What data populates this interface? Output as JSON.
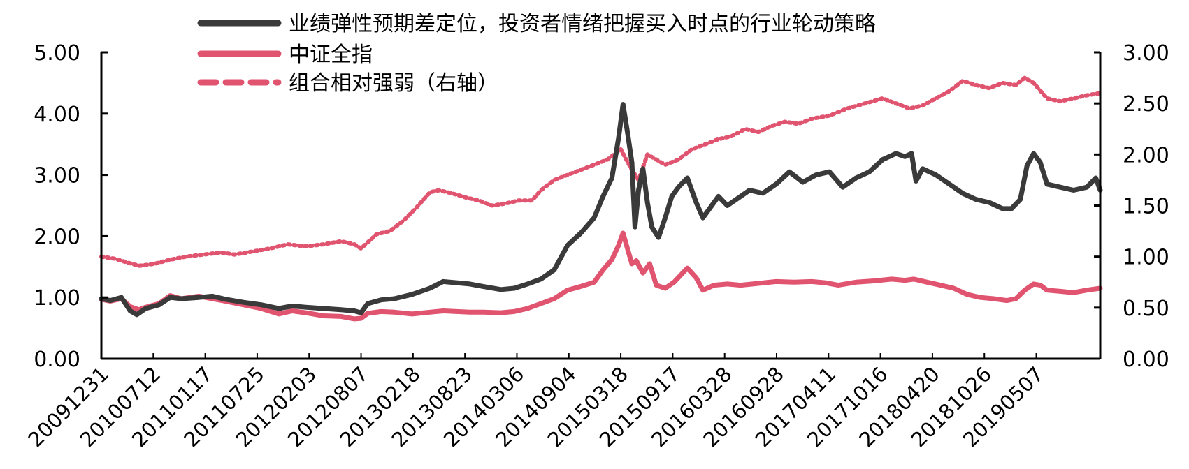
{
  "chart_data": {
    "type": "line",
    "x_categories": [
      "20091231",
      "20100712",
      "20110117",
      "20110725",
      "20120203",
      "20120807",
      "20130218",
      "20130823",
      "20140306",
      "20140904",
      "20150318",
      "20150917",
      "20160328",
      "20160928",
      "20170411",
      "20171016",
      "20180420",
      "20181026",
      "20190507"
    ],
    "y_left": {
      "ticks": [
        "0.00",
        "1.00",
        "2.00",
        "3.00",
        "4.00",
        "5.00"
      ],
      "range": [
        0,
        5
      ]
    },
    "y_right": {
      "ticks": [
        "0.00",
        "0.50",
        "1.00",
        "1.50",
        "2.00",
        "2.50",
        "3.00"
      ],
      "range": [
        0,
        3
      ]
    },
    "x_end_index": 19.1,
    "grid": false,
    "legend_position": "top",
    "series": [
      {
        "name": "业绩弹性预期差定位，投资者情绪把握买入时点的行业轮动策略",
        "axis": "left",
        "color": "#3a3a3a",
        "style": "solid",
        "points": [
          [
            0,
            0.98
          ],
          [
            0.2,
            0.95
          ],
          [
            0.45,
            1.0
          ],
          [
            0.65,
            0.78
          ],
          [
            0.8,
            0.72
          ],
          [
            1.0,
            0.82
          ],
          [
            1.3,
            0.88
          ],
          [
            1.55,
            1.0
          ],
          [
            1.8,
            0.98
          ],
          [
            2.2,
            1.0
          ],
          [
            2.5,
            1.02
          ],
          [
            2.8,
            0.97
          ],
          [
            3.2,
            0.92
          ],
          [
            3.6,
            0.88
          ],
          [
            4.0,
            0.82
          ],
          [
            4.3,
            0.86
          ],
          [
            4.6,
            0.84
          ],
          [
            5.0,
            0.82
          ],
          [
            5.4,
            0.8
          ],
          [
            5.7,
            0.78
          ],
          [
            5.85,
            0.75
          ],
          [
            6.0,
            0.9
          ],
          [
            6.3,
            0.96
          ],
          [
            6.6,
            0.98
          ],
          [
            7.0,
            1.05
          ],
          [
            7.4,
            1.15
          ],
          [
            7.7,
            1.26
          ],
          [
            8.0,
            1.24
          ],
          [
            8.3,
            1.22
          ],
          [
            8.6,
            1.18
          ],
          [
            9.0,
            1.13
          ],
          [
            9.3,
            1.15
          ],
          [
            9.6,
            1.22
          ],
          [
            9.9,
            1.3
          ],
          [
            10.2,
            1.45
          ],
          [
            10.5,
            1.85
          ],
          [
            10.8,
            2.05
          ],
          [
            11.1,
            2.3
          ],
          [
            11.3,
            2.65
          ],
          [
            11.5,
            2.95
          ],
          [
            11.65,
            3.6
          ],
          [
            11.75,
            4.15
          ],
          [
            11.85,
            3.7
          ],
          [
            11.95,
            3.2
          ],
          [
            12.02,
            2.15
          ],
          [
            12.1,
            2.75
          ],
          [
            12.2,
            3.1
          ],
          [
            12.3,
            2.55
          ],
          [
            12.4,
            2.15
          ],
          [
            12.55,
            1.98
          ],
          [
            12.7,
            2.3
          ],
          [
            12.85,
            2.65
          ],
          [
            13.0,
            2.8
          ],
          [
            13.2,
            2.95
          ],
          [
            13.4,
            2.55
          ],
          [
            13.55,
            2.3
          ],
          [
            13.7,
            2.45
          ],
          [
            13.9,
            2.65
          ],
          [
            14.1,
            2.5
          ],
          [
            14.3,
            2.6
          ],
          [
            14.6,
            2.75
          ],
          [
            14.9,
            2.7
          ],
          [
            15.2,
            2.85
          ],
          [
            15.5,
            3.05
          ],
          [
            15.8,
            2.88
          ],
          [
            16.1,
            3.0
          ],
          [
            16.4,
            3.05
          ],
          [
            16.7,
            2.8
          ],
          [
            17.0,
            2.95
          ],
          [
            17.3,
            3.05
          ],
          [
            17.6,
            3.25
          ],
          [
            17.9,
            3.35
          ],
          [
            18.1,
            3.3
          ],
          [
            18.25,
            3.35
          ],
          [
            18.35,
            2.9
          ],
          [
            18.5,
            3.1
          ],
          [
            18.8,
            3.0
          ],
          [
            19.1,
            2.85
          ],
          [
            19.4,
            2.7
          ],
          [
            19.7,
            2.6
          ],
          [
            20.0,
            2.55
          ],
          [
            20.3,
            2.45
          ],
          [
            20.5,
            2.45
          ],
          [
            20.7,
            2.6
          ],
          [
            20.85,
            3.15
          ],
          [
            21.0,
            3.35
          ],
          [
            21.15,
            3.2
          ],
          [
            21.3,
            2.85
          ],
          [
            21.6,
            2.8
          ],
          [
            21.9,
            2.75
          ],
          [
            22.2,
            2.8
          ],
          [
            22.4,
            2.95
          ],
          [
            22.5,
            2.75
          ]
        ]
      },
      {
        "name": "中证全指",
        "axis": "left",
        "color": "#e05470",
        "style": "solid",
        "points": [
          [
            0,
            0.97
          ],
          [
            0.2,
            0.94
          ],
          [
            0.45,
            0.98
          ],
          [
            0.65,
            0.85
          ],
          [
            0.85,
            0.8
          ],
          [
            1.0,
            0.84
          ],
          [
            1.3,
            0.9
          ],
          [
            1.55,
            1.03
          ],
          [
            1.8,
            0.98
          ],
          [
            2.2,
            1.02
          ],
          [
            2.5,
            0.98
          ],
          [
            2.8,
            0.94
          ],
          [
            3.2,
            0.88
          ],
          [
            3.6,
            0.82
          ],
          [
            4.0,
            0.73
          ],
          [
            4.3,
            0.78
          ],
          [
            4.6,
            0.75
          ],
          [
            5.0,
            0.7
          ],
          [
            5.4,
            0.69
          ],
          [
            5.7,
            0.65
          ],
          [
            5.85,
            0.66
          ],
          [
            6.0,
            0.74
          ],
          [
            6.3,
            0.77
          ],
          [
            6.6,
            0.76
          ],
          [
            7.0,
            0.73
          ],
          [
            7.4,
            0.76
          ],
          [
            7.7,
            0.78
          ],
          [
            8.0,
            0.77
          ],
          [
            8.3,
            0.76
          ],
          [
            8.6,
            0.76
          ],
          [
            9.0,
            0.75
          ],
          [
            9.3,
            0.77
          ],
          [
            9.6,
            0.82
          ],
          [
            9.9,
            0.9
          ],
          [
            10.2,
            0.98
          ],
          [
            10.5,
            1.12
          ],
          [
            10.8,
            1.18
          ],
          [
            11.1,
            1.25
          ],
          [
            11.3,
            1.45
          ],
          [
            11.5,
            1.62
          ],
          [
            11.65,
            1.85
          ],
          [
            11.75,
            2.05
          ],
          [
            11.85,
            1.8
          ],
          [
            11.95,
            1.55
          ],
          [
            12.05,
            1.6
          ],
          [
            12.2,
            1.4
          ],
          [
            12.35,
            1.55
          ],
          [
            12.5,
            1.2
          ],
          [
            12.7,
            1.15
          ],
          [
            12.9,
            1.25
          ],
          [
            13.2,
            1.48
          ],
          [
            13.4,
            1.32
          ],
          [
            13.55,
            1.12
          ],
          [
            13.8,
            1.2
          ],
          [
            14.1,
            1.22
          ],
          [
            14.4,
            1.2
          ],
          [
            14.8,
            1.23
          ],
          [
            15.2,
            1.26
          ],
          [
            15.6,
            1.25
          ],
          [
            16.0,
            1.26
          ],
          [
            16.3,
            1.24
          ],
          [
            16.6,
            1.2
          ],
          [
            17.0,
            1.25
          ],
          [
            17.4,
            1.27
          ],
          [
            17.8,
            1.3
          ],
          [
            18.1,
            1.28
          ],
          [
            18.3,
            1.3
          ],
          [
            18.6,
            1.25
          ],
          [
            18.9,
            1.2
          ],
          [
            19.2,
            1.15
          ],
          [
            19.5,
            1.05
          ],
          [
            19.8,
            1.0
          ],
          [
            20.1,
            0.98
          ],
          [
            20.4,
            0.95
          ],
          [
            20.6,
            0.98
          ],
          [
            20.8,
            1.12
          ],
          [
            21.0,
            1.22
          ],
          [
            21.15,
            1.2
          ],
          [
            21.3,
            1.12
          ],
          [
            21.6,
            1.1
          ],
          [
            21.9,
            1.08
          ],
          [
            22.2,
            1.12
          ],
          [
            22.5,
            1.15
          ]
        ]
      },
      {
        "name": "组合相对强弱（右轴）",
        "axis": "right",
        "color": "#e05470",
        "style": "dashed",
        "points": [
          [
            0,
            1.0
          ],
          [
            0.3,
            0.98
          ],
          [
            0.6,
            0.94
          ],
          [
            0.85,
            0.91
          ],
          [
            1.2,
            0.93
          ],
          [
            1.55,
            0.97
          ],
          [
            1.9,
            1.0
          ],
          [
            2.3,
            1.02
          ],
          [
            2.7,
            1.04
          ],
          [
            3.0,
            1.02
          ],
          [
            3.4,
            1.05
          ],
          [
            3.8,
            1.08
          ],
          [
            4.2,
            1.12
          ],
          [
            4.6,
            1.1
          ],
          [
            5.0,
            1.12
          ],
          [
            5.4,
            1.15
          ],
          [
            5.7,
            1.12
          ],
          [
            5.85,
            1.08
          ],
          [
            6.2,
            1.22
          ],
          [
            6.5,
            1.25
          ],
          [
            6.8,
            1.35
          ],
          [
            7.1,
            1.48
          ],
          [
            7.4,
            1.63
          ],
          [
            7.6,
            1.65
          ],
          [
            7.9,
            1.62
          ],
          [
            8.2,
            1.58
          ],
          [
            8.5,
            1.55
          ],
          [
            8.8,
            1.5
          ],
          [
            9.1,
            1.52
          ],
          [
            9.4,
            1.55
          ],
          [
            9.7,
            1.55
          ],
          [
            9.9,
            1.65
          ],
          [
            10.2,
            1.75
          ],
          [
            10.5,
            1.8
          ],
          [
            10.8,
            1.85
          ],
          [
            11.1,
            1.9
          ],
          [
            11.4,
            1.95
          ],
          [
            11.7,
            2.05
          ],
          [
            11.95,
            1.85
          ],
          [
            12.1,
            1.75
          ],
          [
            12.3,
            2.0
          ],
          [
            12.5,
            1.95
          ],
          [
            12.7,
            1.9
          ],
          [
            13.0,
            1.95
          ],
          [
            13.3,
            2.05
          ],
          [
            13.6,
            2.1
          ],
          [
            13.9,
            2.15
          ],
          [
            14.2,
            2.18
          ],
          [
            14.5,
            2.25
          ],
          [
            14.8,
            2.22
          ],
          [
            15.1,
            2.28
          ],
          [
            15.4,
            2.32
          ],
          [
            15.7,
            2.3
          ],
          [
            16.0,
            2.35
          ],
          [
            16.4,
            2.38
          ],
          [
            16.8,
            2.45
          ],
          [
            17.2,
            2.5
          ],
          [
            17.6,
            2.55
          ],
          [
            17.9,
            2.5
          ],
          [
            18.2,
            2.45
          ],
          [
            18.5,
            2.48
          ],
          [
            18.8,
            2.55
          ],
          [
            19.1,
            2.62
          ],
          [
            19.4,
            2.72
          ],
          [
            19.7,
            2.68
          ],
          [
            20.0,
            2.65
          ],
          [
            20.3,
            2.7
          ],
          [
            20.6,
            2.68
          ],
          [
            20.8,
            2.75
          ],
          [
            21.0,
            2.7
          ],
          [
            21.3,
            2.55
          ],
          [
            21.6,
            2.52
          ],
          [
            21.9,
            2.55
          ],
          [
            22.2,
            2.58
          ],
          [
            22.5,
            2.6
          ]
        ]
      }
    ]
  }
}
